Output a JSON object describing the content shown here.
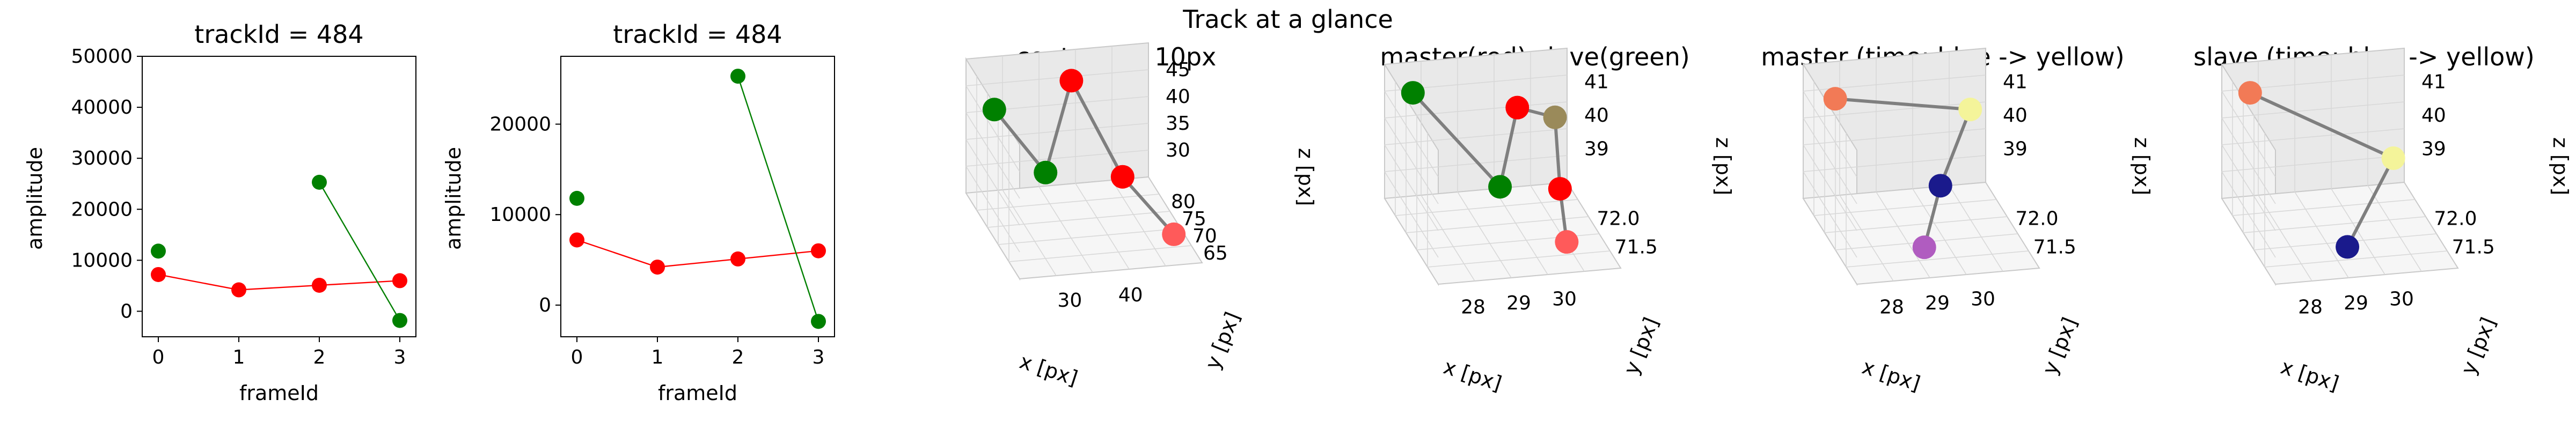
{
  "figure": {
    "suptitle": "Track at a glance"
  },
  "colors": {
    "master": "#ff0000",
    "slave": "#008000",
    "connector": "#7f7f7f"
  },
  "chart_data": [
    {
      "type": "line",
      "title": "trackId = 484",
      "xlabel": "frameId",
      "ylabel": "amplitude",
      "xlim": [
        -0.2,
        3.2
      ],
      "ylim": [
        -5000,
        50000
      ],
      "xticks": [
        0,
        1,
        2,
        3
      ],
      "yticks": [
        0,
        10000,
        20000,
        30000,
        40000,
        50000
      ],
      "series": [
        {
          "x": [
            0,
            1,
            2,
            3
          ],
          "y": [
            7200,
            4200,
            5100,
            6000
          ],
          "color": "#ff0000"
        },
        {
          "x": [
            0
          ],
          "y": [
            11800
          ],
          "color": "#008000"
        },
        {
          "x": [
            2,
            3
          ],
          "y": [
            25300,
            -1800
          ],
          "color": "#008000"
        }
      ]
    },
    {
      "type": "line",
      "title": "trackId = 484",
      "xlabel": "frameId",
      "ylabel": "amplitude",
      "xlim": [
        -0.2,
        3.2
      ],
      "ylim": [
        -3500,
        27500
      ],
      "xticks": [
        0,
        1,
        2,
        3
      ],
      "yticks": [
        0,
        10000,
        20000
      ],
      "series": [
        {
          "x": [
            0,
            1,
            2,
            3
          ],
          "y": [
            7200,
            4200,
            5100,
            6000
          ],
          "color": "#ff0000"
        },
        {
          "x": [
            0
          ],
          "y": [
            11800
          ],
          "color": "#008000"
        },
        {
          "x": [
            2,
            3
          ],
          "y": [
            25300,
            -1800
          ],
          "color": "#008000"
        }
      ]
    },
    {
      "type": "scatter",
      "projection": "3d",
      "title": "context +- 10px",
      "xlabel": "x [px]",
      "ylabel": "y [px]",
      "zlabel": "z [px]",
      "xticks": [
        "30",
        "40"
      ],
      "yticks": [
        "65",
        "70",
        "75",
        "80"
      ],
      "zticks": [
        "30",
        "35",
        "40",
        "45"
      ],
      "points": [
        {
          "x": 29.0,
          "y": 72.0,
          "z": 40.2,
          "color": "#008000"
        },
        {
          "x": 29.4,
          "y": 71.9,
          "z": 39.6,
          "color": "#008000"
        },
        {
          "x": 30.0,
          "y": 72.0,
          "z": 40.6,
          "color": "#ff0000"
        },
        {
          "x": 30.4,
          "y": 71.9,
          "z": 39.4,
          "color": "#ff0000"
        },
        {
          "x": 30.8,
          "y": 71.8,
          "z": 38.9,
          "color": "#ff5a5a"
        }
      ]
    },
    {
      "type": "scatter",
      "projection": "3d",
      "title": "master(red) slave(green)",
      "xlabel": "x [px]",
      "ylabel": "y [px]",
      "zlabel": "z [px]",
      "xticks": [
        "28",
        "29",
        "30"
      ],
      "yticks": [
        "71.5",
        "72.0"
      ],
      "zticks": [
        "39",
        "40",
        "41"
      ],
      "points": [
        {
          "x": 28.1,
          "y": 72.2,
          "z": 40.9,
          "color": "#008000"
        },
        {
          "x": 29.2,
          "y": 71.3,
          "z": 40.1,
          "color": "#008000"
        },
        {
          "x": 30.0,
          "y": 72.0,
          "z": 40.7,
          "color": "#ff0000"
        },
        {
          "x": 30.8,
          "y": 72.1,
          "z": 40.4,
          "color": "#9a8a5a"
        },
        {
          "x": 30.5,
          "y": 71.5,
          "z": 39.8,
          "color": "#ff0000"
        },
        {
          "x": 30.3,
          "y": 71.0,
          "z": 39.4,
          "color": "#ff5a5a"
        }
      ]
    },
    {
      "type": "scatter",
      "projection": "3d",
      "title": "master (time: blue -> yellow)",
      "xlabel": "x [px]",
      "ylabel": "y [px]",
      "zlabel": "z [px]",
      "xticks": [
        "28",
        "29",
        "30"
      ],
      "yticks": [
        "71.5",
        "72.0"
      ],
      "zticks": [
        "39",
        "40",
        "41"
      ],
      "points": [
        {
          "x": 30.0,
          "y": 72.0,
          "z": 40.7,
          "color": "#f27a56"
        },
        {
          "x": 30.8,
          "y": 72.1,
          "z": 40.3,
          "color": "#f4f49a"
        },
        {
          "x": 30.5,
          "y": 71.5,
          "z": 39.8,
          "color": "#1a1a8c"
        },
        {
          "x": 30.3,
          "y": 71.0,
          "z": 39.4,
          "color": "#b05cc0"
        }
      ]
    },
    {
      "type": "scatter",
      "projection": "3d",
      "title": "slave (time: blue -> yellow)",
      "xlabel": "x [px]",
      "ylabel": "y [px]",
      "zlabel": "z [px]",
      "xticks": [
        "28",
        "29",
        "30"
      ],
      "yticks": [
        "71.5",
        "72.0"
      ],
      "zticks": [
        "39",
        "40",
        "41"
      ],
      "points": [
        {
          "x": 28.1,
          "y": 72.2,
          "z": 40.9,
          "color": "#f27a56"
        },
        {
          "x": 30.8,
          "y": 72.1,
          "z": 40.3,
          "color": "#f4f49a"
        },
        {
          "x": 29.2,
          "y": 71.3,
          "z": 40.1,
          "color": "#1a1a8c"
        }
      ]
    }
  ]
}
